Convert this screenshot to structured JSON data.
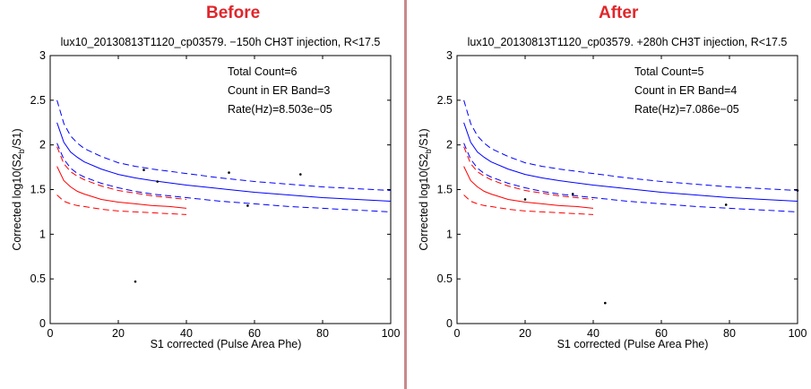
{
  "panels": {
    "before_heading": "Before",
    "after_heading": "After"
  },
  "chart_data": [
    {
      "type": "scatter",
      "title": "lux10_20130813T1120_cp03579. −150h CH3T injection, R<17.5",
      "xlabel": "S1 corrected (Pulse Area Phe)",
      "ylabel": "Corrected log10(S2_b/S1)",
      "ylabel_parts": {
        "pre": "Corrected log10(S2",
        "sub": "b",
        "post": "/S1)"
      },
      "xlim": [
        0,
        100
      ],
      "ylim": [
        0,
        3
      ],
      "xticks": [
        "0",
        "20",
        "40",
        "60",
        "80",
        "100"
      ],
      "yticks": [
        "0",
        "0.5",
        "1",
        "1.5",
        "2",
        "2.5",
        "3"
      ],
      "annotations": [
        "Total Count=6",
        "Count in ER Band=3",
        "Rate(Hz)=8.503e−05"
      ],
      "points": [
        {
          "x": 25,
          "y": 0.47
        },
        {
          "x": 27.5,
          "y": 1.72
        },
        {
          "x": 31.5,
          "y": 1.59
        },
        {
          "x": 52.5,
          "y": 1.69
        },
        {
          "x": 58,
          "y": 1.32
        },
        {
          "x": 73.5,
          "y": 1.67
        }
      ],
      "bands": [
        {
          "color": "#0000ff",
          "style": "solid",
          "x": [
            2,
            4,
            6,
            8,
            10,
            15,
            20,
            25,
            30,
            40,
            50,
            60,
            70,
            80,
            90,
            100
          ],
          "y": [
            2.25,
            2.03,
            1.92,
            1.86,
            1.81,
            1.73,
            1.67,
            1.63,
            1.6,
            1.55,
            1.51,
            1.47,
            1.44,
            1.41,
            1.39,
            1.37
          ]
        },
        {
          "color": "#0000ff",
          "style": "dashed",
          "x": [
            2,
            4,
            6,
            8,
            10,
            15,
            20,
            25,
            30,
            40,
            50,
            60,
            70,
            80,
            90,
            100
          ],
          "y": [
            2.5,
            2.24,
            2.1,
            2.02,
            1.96,
            1.87,
            1.8,
            1.76,
            1.73,
            1.68,
            1.63,
            1.59,
            1.56,
            1.53,
            1.51,
            1.49
          ]
        },
        {
          "color": "#0000ff",
          "style": "dashed",
          "x": [
            2,
            4,
            6,
            8,
            10,
            15,
            20,
            25,
            30,
            40,
            50,
            60,
            70,
            80,
            90,
            100
          ],
          "y": [
            2.02,
            1.84,
            1.74,
            1.68,
            1.64,
            1.57,
            1.52,
            1.48,
            1.45,
            1.41,
            1.37,
            1.34,
            1.31,
            1.29,
            1.27,
            1.25
          ]
        },
        {
          "color": "#ff0000",
          "style": "solid",
          "x": [
            2,
            4,
            6,
            8,
            10,
            15,
            20,
            25,
            30,
            35,
            40
          ],
          "y": [
            1.76,
            1.6,
            1.53,
            1.48,
            1.45,
            1.39,
            1.36,
            1.34,
            1.32,
            1.31,
            1.29
          ]
        },
        {
          "color": "#ff0000",
          "style": "dashed",
          "x": [
            2,
            4,
            6,
            8,
            10,
            15,
            20,
            25,
            30,
            35,
            40
          ],
          "y": [
            1.98,
            1.79,
            1.7,
            1.65,
            1.61,
            1.54,
            1.49,
            1.46,
            1.43,
            1.41,
            1.39
          ]
        },
        {
          "color": "#ff0000",
          "style": "dashed",
          "x": [
            2,
            4,
            6,
            8,
            10,
            15,
            20,
            25,
            30,
            35,
            40
          ],
          "y": [
            1.44,
            1.37,
            1.34,
            1.32,
            1.31,
            1.28,
            1.26,
            1.25,
            1.24,
            1.23,
            1.22
          ]
        }
      ]
    },
    {
      "type": "scatter",
      "title": "lux10_20130813T1120_cp03579. +280h CH3T injection, R<17.5",
      "xlabel": "S1 corrected (Pulse Area Phe)",
      "ylabel": "Corrected log10(S2_b/S1)",
      "ylabel_parts": {
        "pre": "Corrected log10(S2",
        "sub": "b",
        "post": "/S1)"
      },
      "xlim": [
        0,
        100
      ],
      "ylim": [
        0,
        3
      ],
      "xticks": [
        "0",
        "20",
        "40",
        "60",
        "80",
        "100"
      ],
      "yticks": [
        "0",
        "0.5",
        "1",
        "1.5",
        "2",
        "2.5",
        "3"
      ],
      "annotations": [
        "Total Count=5",
        "Count in ER Band=4",
        "Rate(Hz)=7.086e−05"
      ],
      "points": [
        {
          "x": 20,
          "y": 1.39
        },
        {
          "x": 34,
          "y": 1.45
        },
        {
          "x": 43.5,
          "y": 0.23
        },
        {
          "x": 79,
          "y": 1.33
        },
        {
          "x": 100,
          "y": 1.49
        }
      ],
      "bands": [
        {
          "color": "#0000ff",
          "style": "solid",
          "x": [
            2,
            4,
            6,
            8,
            10,
            15,
            20,
            25,
            30,
            40,
            50,
            60,
            70,
            80,
            90,
            100
          ],
          "y": [
            2.25,
            2.03,
            1.92,
            1.86,
            1.81,
            1.73,
            1.67,
            1.63,
            1.6,
            1.55,
            1.51,
            1.47,
            1.44,
            1.41,
            1.39,
            1.37
          ]
        },
        {
          "color": "#0000ff",
          "style": "dashed",
          "x": [
            2,
            4,
            6,
            8,
            10,
            15,
            20,
            25,
            30,
            40,
            50,
            60,
            70,
            80,
            90,
            100
          ],
          "y": [
            2.5,
            2.24,
            2.1,
            2.02,
            1.96,
            1.87,
            1.8,
            1.76,
            1.73,
            1.68,
            1.63,
            1.59,
            1.56,
            1.53,
            1.51,
            1.49
          ]
        },
        {
          "color": "#0000ff",
          "style": "dashed",
          "x": [
            2,
            4,
            6,
            8,
            10,
            15,
            20,
            25,
            30,
            40,
            50,
            60,
            70,
            80,
            90,
            100
          ],
          "y": [
            2.02,
            1.84,
            1.74,
            1.68,
            1.64,
            1.57,
            1.52,
            1.48,
            1.45,
            1.41,
            1.37,
            1.34,
            1.31,
            1.29,
            1.27,
            1.25
          ]
        },
        {
          "color": "#ff0000",
          "style": "solid",
          "x": [
            2,
            4,
            6,
            8,
            10,
            15,
            20,
            25,
            30,
            35,
            40
          ],
          "y": [
            1.76,
            1.6,
            1.53,
            1.48,
            1.45,
            1.39,
            1.36,
            1.34,
            1.32,
            1.31,
            1.29
          ]
        },
        {
          "color": "#ff0000",
          "style": "dashed",
          "x": [
            2,
            4,
            6,
            8,
            10,
            15,
            20,
            25,
            30,
            35,
            40
          ],
          "y": [
            1.98,
            1.79,
            1.7,
            1.65,
            1.61,
            1.54,
            1.49,
            1.46,
            1.43,
            1.41,
            1.39
          ]
        },
        {
          "color": "#ff0000",
          "style": "dashed",
          "x": [
            2,
            4,
            6,
            8,
            10,
            15,
            20,
            25,
            30,
            35,
            40
          ],
          "y": [
            1.44,
            1.37,
            1.34,
            1.32,
            1.31,
            1.28,
            1.26,
            1.25,
            1.24,
            1.23,
            1.22
          ]
        }
      ]
    }
  ]
}
